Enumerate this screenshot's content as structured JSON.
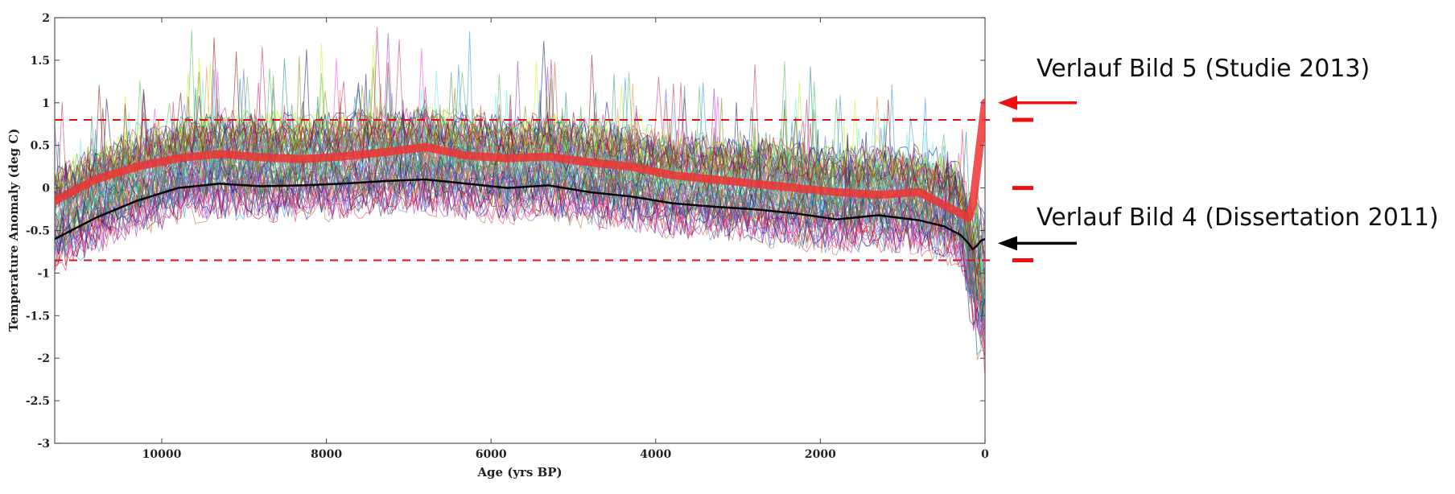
{
  "chart_data": {
    "type": "line",
    "title": "",
    "xlabel": "Age (yrs BP)",
    "ylabel": "Temperature Anomaly (deg C)",
    "xlim": [
      11300,
      0
    ],
    "ylim": [
      -3,
      2
    ],
    "x_reversed": true,
    "x_ticks": [
      10000,
      8000,
      6000,
      4000,
      2000,
      0
    ],
    "y_ticks": [
      2,
      1.5,
      1,
      0.5,
      0,
      -0.5,
      -1,
      -1.5,
      -2,
      -2.5,
      -3
    ],
    "grid": false,
    "ensemble": {
      "member_count": 80,
      "description_colors": [
        "#e6194b",
        "#3cb44b",
        "#4363d8",
        "#f58231",
        "#911eb4",
        "#46f0f0",
        "#f032e6",
        "#bcf60c",
        "#008080",
        "#9a6324",
        "#800000",
        "#808000",
        "#000075",
        "#2f8f4f",
        "#c2185b",
        "#1e88e5"
      ]
    },
    "series": [
      {
        "key": "black_mean",
        "color": "#000000",
        "x": [
          11300,
          10800,
          10300,
          9800,
          9300,
          8800,
          8300,
          7800,
          7300,
          6800,
          6300,
          5800,
          5300,
          4800,
          4300,
          3800,
          3300,
          2800,
          2300,
          1800,
          1300,
          800,
          500,
          300,
          200,
          150,
          100,
          50,
          0
        ],
        "y": [
          -0.6,
          -0.35,
          -0.15,
          0.0,
          0.05,
          0.02,
          0.03,
          0.05,
          0.08,
          0.1,
          0.05,
          0.0,
          0.03,
          -0.05,
          -0.1,
          -0.18,
          -0.22,
          -0.25,
          -0.3,
          -0.37,
          -0.32,
          -0.38,
          -0.45,
          -0.55,
          -0.65,
          -0.72,
          -0.68,
          -0.62,
          -0.6
        ]
      },
      {
        "key": "red_mean",
        "color": "#ee3333",
        "x": [
          11300,
          10800,
          10300,
          9800,
          9300,
          8800,
          8300,
          7800,
          7300,
          6800,
          6300,
          5800,
          5300,
          4800,
          4300,
          3800,
          3300,
          2800,
          2300,
          1800,
          1300,
          800,
          500,
          300,
          200,
          150,
          100,
          50,
          0
        ],
        "y": [
          -0.15,
          0.1,
          0.25,
          0.35,
          0.4,
          0.36,
          0.34,
          0.37,
          0.42,
          0.48,
          0.38,
          0.35,
          0.37,
          0.3,
          0.25,
          0.15,
          0.1,
          0.05,
          0.0,
          -0.05,
          -0.08,
          -0.05,
          -0.2,
          -0.3,
          -0.35,
          -0.2,
          0.2,
          0.6,
          1.0
        ]
      }
    ],
    "reference_lines": [
      {
        "y": 0.8,
        "color": "#dd1111",
        "style": "dashed"
      },
      {
        "y": -0.85,
        "color": "#dd1111",
        "style": "dashed"
      }
    ],
    "side_markers_y": [
      0.8,
      0,
      -0.85
    ],
    "annotations": [
      {
        "key": "bild5",
        "text": "Verlauf Bild 5 (Studie 2013)",
        "arrow_color": "#ee1111",
        "points_to_y": 1.0
      },
      {
        "key": "bild4",
        "text": "Verlauf Bild 4 (Dissertation 2011)",
        "arrow_color": "#000000",
        "points_to_y": -0.65
      }
    ]
  }
}
